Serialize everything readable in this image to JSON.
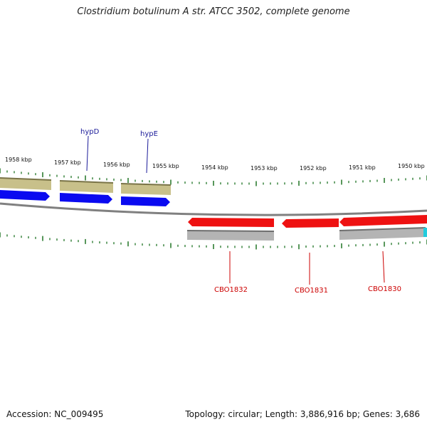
{
  "title": "Clostridium botulinum A str. ATCC 3502, complete genome",
  "footer": {
    "accession": "Accession: NC_009495",
    "summary": "Topology: circular; Length: 3,886,916 bp; Genes: 3,686"
  },
  "colors": {
    "forward_gene": "#0a0af0",
    "reverse_gene": "#ee1111",
    "forward_band": "#c8c08a",
    "reverse_band": "#b4b4b4",
    "backbone": "#808080",
    "ticks": "#2e7d32",
    "end_marker": "#22ccdd"
  },
  "scale_labels": [
    "1958 kbp",
    "1957 kbp",
    "1956 kbp",
    "1955 kbp",
    "1954 kbp",
    "1953 kbp",
    "1952 kbp",
    "1951 kbp",
    "1950 kbp"
  ],
  "forward_genes": [
    {
      "name": "",
      "strand": "+"
    },
    {
      "name": "hypD",
      "strand": "+"
    },
    {
      "name": "hypE",
      "strand": "+"
    }
  ],
  "reverse_genes": [
    {
      "name": "CBO1832",
      "strand": "-"
    },
    {
      "name": "CBO1831",
      "strand": "-"
    },
    {
      "name": "CBO1830",
      "strand": "-"
    }
  ]
}
